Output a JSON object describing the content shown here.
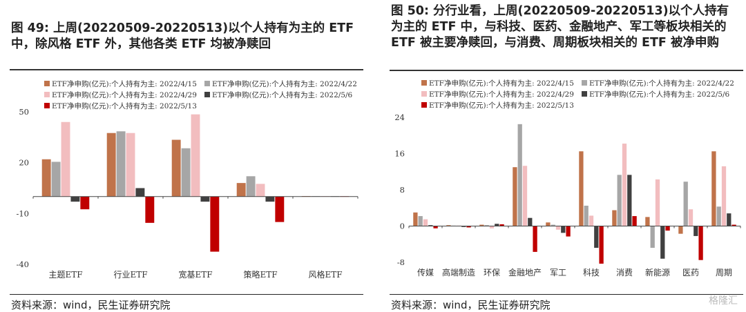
{
  "left": {
    "title": "图 49: 上周(20220509-20220513)以个人持有为主的 ETF 中，除风格 ETF 外，其他各类 ETF 均被净赎回",
    "source": "资料来源：wind，民生证券研究院",
    "chart_data": {
      "type": "bar",
      "categories": [
        "主题ETF",
        "行业ETF",
        "宽基ETF",
        "策略ETF",
        "风格ETF"
      ],
      "ylim": [
        -40,
        50
      ],
      "yticks": [
        50,
        20,
        -10,
        -40
      ],
      "series": [
        {
          "name": "ETF净申购(亿元):个人持有为主: 2022/4/15",
          "color": "#C0734A",
          "values": [
            22,
            37.5,
            33.5,
            8,
            0.3
          ]
        },
        {
          "name": "ETF净申购(亿元):个人持有为主: 2022/4/22",
          "color": "#A6A6A6",
          "values": [
            20.5,
            38.5,
            28.5,
            12,
            0.3
          ]
        },
        {
          "name": "ETF净申购(亿元):个人持有为主: 2022/4/29",
          "color": "#F2BDBF",
          "values": [
            44,
            37.5,
            48.5,
            7.5,
            0.3
          ]
        },
        {
          "name": "ETF净申购(亿元):个人持有为主: 2022/5/6",
          "color": "#404040",
          "values": [
            -3,
            5,
            -3,
            -3,
            0.2
          ]
        },
        {
          "name": "ETF净申购(亿元):个人持有为主: 2022/5/13",
          "color": "#C00000",
          "values": [
            -7.5,
            -15.5,
            -32.5,
            -15,
            0.2
          ]
        }
      ]
    }
  },
  "right": {
    "title": "图 50: 分行业看，上周(20220509-20220513)以个人持有为主的 ETF 中，与科技、医药、金融地产、军工等板块相关的 ETF 被主要净赎回，与消费、周期板块相关的 ETF 被净申购",
    "source": "资料来源：wind，民生证券研究院",
    "watermark": "格隆汇",
    "chart_data": {
      "type": "bar",
      "categories": [
        "传媒",
        "高端制造",
        "环保",
        "金融地产",
        "军工",
        "科技",
        "消费",
        "新能源",
        "医药",
        "周期"
      ],
      "ylim": [
        -8,
        24
      ],
      "yticks": [
        24,
        16,
        8,
        0,
        -8
      ],
      "series": [
        {
          "name": "ETF净申购(亿元):个人持有为主: 2022/4/15",
          "color": "#C0734A",
          "values": [
            3,
            0.2,
            0.3,
            13,
            0.8,
            16.5,
            3.5,
            2,
            -1.7,
            16.5
          ]
        },
        {
          "name": "ETF净申购(亿元):个人持有为主: 2022/4/22",
          "color": "#A6A6A6",
          "values": [
            2.2,
            0.1,
            0.2,
            22.5,
            0.3,
            4.5,
            11.3,
            -4.8,
            9.8,
            4.3
          ]
        },
        {
          "name": "ETF净申购(亿元):个人持有为主: 2022/4/29",
          "color": "#F2BDBF",
          "values": [
            1.5,
            0.1,
            -0.5,
            13.3,
            -0.8,
            2.3,
            18.2,
            10.3,
            3.7,
            13.2
          ]
        },
        {
          "name": "ETF净申购(亿元):个人持有为主: 2022/5/6",
          "color": "#404040",
          "values": [
            0.2,
            -0.2,
            0.5,
            1.8,
            -1.5,
            -4.8,
            11.3,
            -7.2,
            -2.2,
            2.8
          ]
        },
        {
          "name": "ETF净申购(亿元):个人持有为主: 2022/5/13",
          "color": "#C00000",
          "values": [
            -0.5,
            -0.3,
            0.4,
            -5.7,
            -2.3,
            -8.3,
            2.2,
            -1,
            -7.5,
            0.3
          ]
        }
      ]
    }
  }
}
